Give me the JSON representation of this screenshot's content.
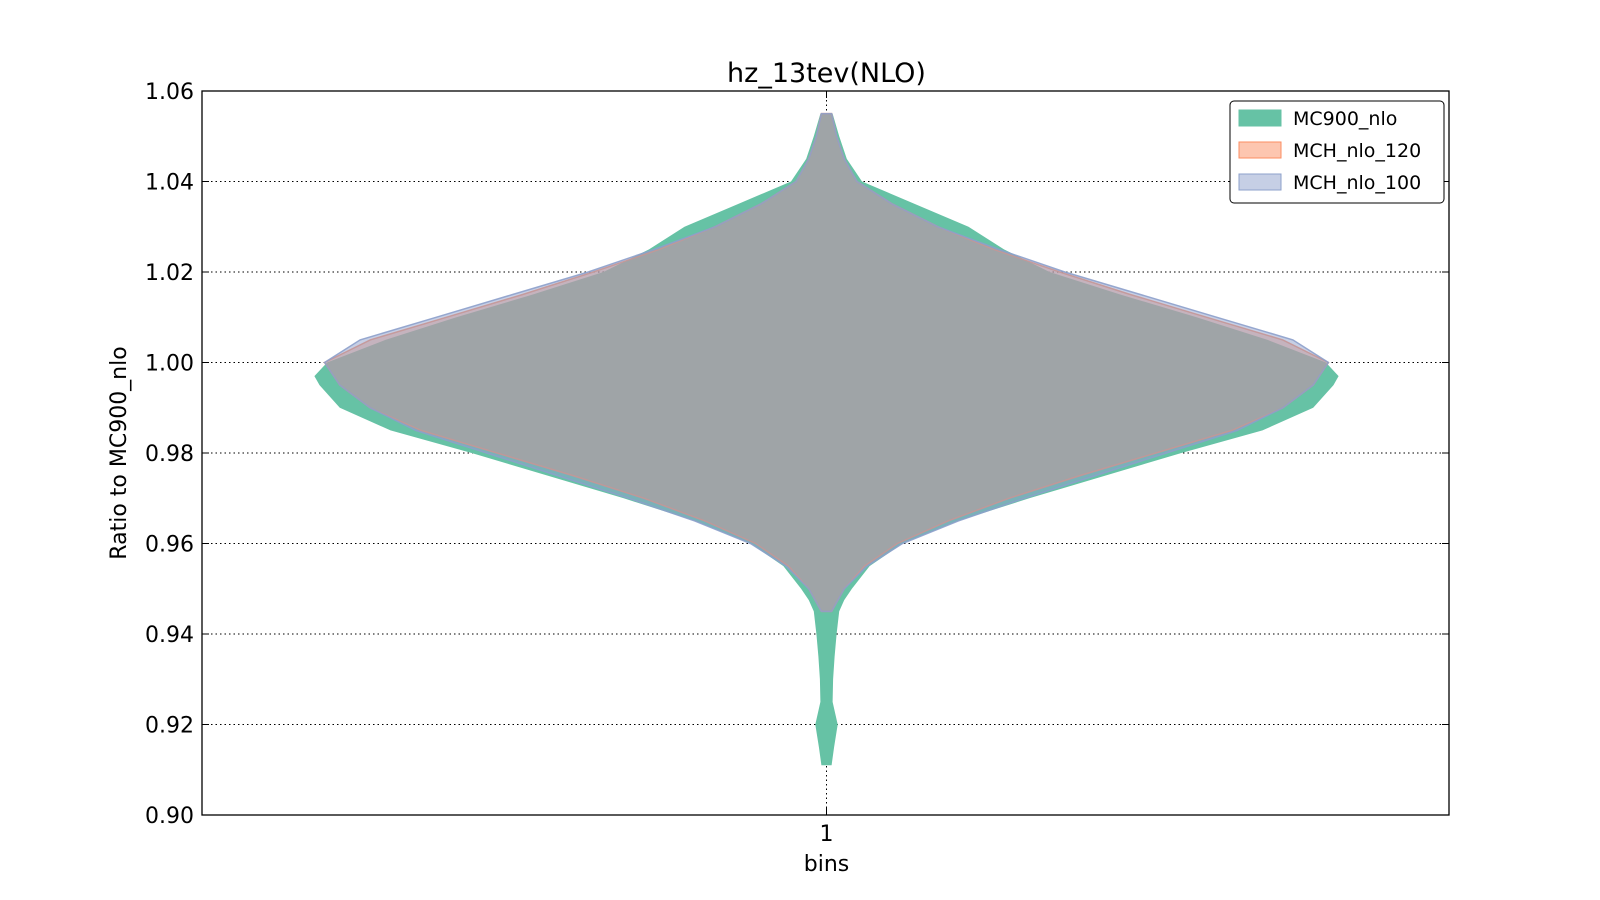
{
  "chart_data": {
    "type": "violin",
    "title": "hz_13tev(NLO)",
    "xlabel": "bins",
    "ylabel": "Ratio to MC900_nlo",
    "categories": [
      "1"
    ],
    "ylim": [
      0.9,
      1.06
    ],
    "yticks": [
      "0.90",
      "0.92",
      "0.94",
      "0.96",
      "0.98",
      "1.00",
      "1.02",
      "1.04",
      "1.06"
    ],
    "grid": true,
    "legend_position": "top-right",
    "series": [
      {
        "name": "MC900_nlo",
        "color": "#66c2a5",
        "profile": [
          [
            0.911,
            0.01
          ],
          [
            0.915,
            0.015
          ],
          [
            0.92,
            0.022
          ],
          [
            0.925,
            0.012
          ],
          [
            0.93,
            0.013
          ],
          [
            0.935,
            0.016
          ],
          [
            0.94,
            0.02
          ],
          [
            0.945,
            0.025
          ],
          [
            0.9475,
            0.035
          ],
          [
            0.95,
            0.05
          ],
          [
            0.955,
            0.085
          ],
          [
            0.96,
            0.15
          ],
          [
            0.965,
            0.26
          ],
          [
            0.97,
            0.4
          ],
          [
            0.975,
            0.55
          ],
          [
            0.98,
            0.7
          ],
          [
            0.985,
            0.86
          ],
          [
            0.99,
            0.96
          ],
          [
            0.995,
            1.0
          ],
          [
            0.997,
            1.01
          ],
          [
            1.0,
            0.985
          ],
          [
            1.005,
            0.87
          ],
          [
            1.01,
            0.73
          ],
          [
            1.015,
            0.58
          ],
          [
            1.02,
            0.44
          ],
          [
            1.025,
            0.35
          ],
          [
            1.03,
            0.28
          ],
          [
            1.035,
            0.175
          ],
          [
            1.04,
            0.07
          ],
          [
            1.045,
            0.04
          ],
          [
            1.05,
            0.025
          ],
          [
            1.055,
            0.012
          ]
        ]
      },
      {
        "name": "MCH_nlo_120",
        "color": "#fc8d62",
        "profile": [
          [
            0.945,
            0.01
          ],
          [
            0.95,
            0.035
          ],
          [
            0.955,
            0.075
          ],
          [
            0.96,
            0.14
          ],
          [
            0.965,
            0.24
          ],
          [
            0.97,
            0.36
          ],
          [
            0.975,
            0.5
          ],
          [
            0.98,
            0.65
          ],
          [
            0.985,
            0.8
          ],
          [
            0.99,
            0.9
          ],
          [
            0.995,
            0.96
          ],
          [
            1.0,
            0.99
          ],
          [
            1.005,
            0.9
          ],
          [
            1.01,
            0.75
          ],
          [
            1.015,
            0.6
          ],
          [
            1.02,
            0.46
          ],
          [
            1.025,
            0.33
          ],
          [
            1.03,
            0.22
          ],
          [
            1.035,
            0.13
          ],
          [
            1.04,
            0.06
          ],
          [
            1.045,
            0.035
          ],
          [
            1.05,
            0.02
          ],
          [
            1.055,
            0.01
          ]
        ]
      },
      {
        "name": "MCH_nlo_100",
        "color": "#8da0cb",
        "profile": [
          [
            0.945,
            0.01
          ],
          [
            0.95,
            0.035
          ],
          [
            0.955,
            0.08
          ],
          [
            0.96,
            0.15
          ],
          [
            0.965,
            0.26
          ],
          [
            0.97,
            0.39
          ],
          [
            0.975,
            0.53
          ],
          [
            0.98,
            0.67
          ],
          [
            0.985,
            0.81
          ],
          [
            0.99,
            0.9
          ],
          [
            0.995,
            0.96
          ],
          [
            1.0,
            0.99
          ],
          [
            1.005,
            0.92
          ],
          [
            1.01,
            0.77
          ],
          [
            1.015,
            0.62
          ],
          [
            1.02,
            0.47
          ],
          [
            1.025,
            0.34
          ],
          [
            1.03,
            0.22
          ],
          [
            1.035,
            0.13
          ],
          [
            1.04,
            0.06
          ],
          [
            1.045,
            0.035
          ],
          [
            1.05,
            0.02
          ],
          [
            1.055,
            0.01
          ]
        ]
      }
    ]
  }
}
